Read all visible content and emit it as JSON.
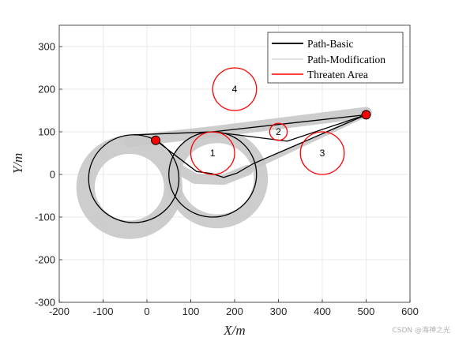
{
  "chart_data": {
    "type": "line",
    "title": "",
    "xlabel": "X/m",
    "ylabel": "Y/m",
    "xlim": [
      -200,
      600
    ],
    "ylim": [
      -300,
      350
    ],
    "xticks": [
      -200,
      -100,
      0,
      100,
      200,
      300,
      400,
      500,
      600
    ],
    "yticks": [
      -300,
      -200,
      -100,
      0,
      100,
      200,
      300
    ],
    "xtick_labels": [
      "-200",
      "-100",
      "0",
      "100",
      "200",
      "300",
      "400",
      "500",
      "600"
    ],
    "ytick_labels": [
      "-300",
      "-200",
      "-100",
      "0",
      "100",
      "200",
      "300"
    ],
    "grid": true,
    "legend": {
      "position": "top-right",
      "entries": [
        {
          "label": "Path-Basic",
          "color": "#000000"
        },
        {
          "label": "Path-Modification",
          "color": "#c8c8c8"
        },
        {
          "label": "Threaten Area",
          "color": "#ff0000"
        }
      ]
    },
    "start_point": {
      "x": 20,
      "y": 80
    },
    "goal_point": {
      "x": 500,
      "y": 140
    },
    "threat_areas": [
      {
        "label": "1",
        "cx": 150,
        "cy": 50,
        "r": 50
      },
      {
        "label": "2",
        "cx": 300,
        "cy": 100,
        "r": 20
      },
      {
        "label": "3",
        "cx": 400,
        "cy": 50,
        "r": 50
      },
      {
        "label": "4",
        "cx": 200,
        "cy": 200,
        "r": 50
      }
    ],
    "path_basic": [
      {
        "type": "line",
        "points": [
          [
            20,
            80
          ],
          [
            113,
            7
          ],
          [
            148,
            2
          ],
          [
            175,
            -7
          ],
          [
            205,
            3
          ],
          [
            242,
            25
          ]
        ]
      },
      {
        "type": "line",
        "points": [
          [
            242,
            25
          ],
          [
            500,
            140
          ]
        ]
      },
      {
        "type": "circle",
        "cx": 150,
        "cy": 0,
        "r": 100
      },
      {
        "type": "circle",
        "cx": -30,
        "cy": -10,
        "r": 103
      },
      {
        "type": "line",
        "points": [
          [
            -30,
            93
          ],
          [
            150,
            100
          ],
          [
            500,
            140
          ]
        ]
      },
      {
        "type": "line",
        "points": [
          [
            150,
            100
          ],
          [
            320,
            78
          ],
          [
            500,
            140
          ]
        ]
      }
    ],
    "path_modification_band": [
      {
        "type": "circle",
        "cx": -40,
        "cy": -30,
        "r": 100,
        "width": 42
      },
      {
        "type": "circle",
        "cx": 160,
        "cy": -10,
        "r": 100,
        "width": 32
      },
      {
        "type": "line",
        "points": [
          [
            -40,
            78
          ],
          [
            150,
            100
          ],
          [
            500,
            145
          ]
        ],
        "width": 26
      },
      {
        "type": "line",
        "points": [
          [
            60,
            20
          ],
          [
            110,
            -10
          ],
          [
            175,
            -12
          ],
          [
            230,
            10
          ]
        ],
        "width": 24
      },
      {
        "type": "line",
        "points": [
          [
            230,
            10
          ],
          [
            500,
            140
          ]
        ],
        "width": 10
      }
    ],
    "colors": {
      "basic": "#000000",
      "modification": "#c8c8c8",
      "threat": "#ff0000",
      "marker": "#ff0000",
      "grid": "#e2e2e2"
    }
  },
  "watermark": "CSDN @海神之光"
}
